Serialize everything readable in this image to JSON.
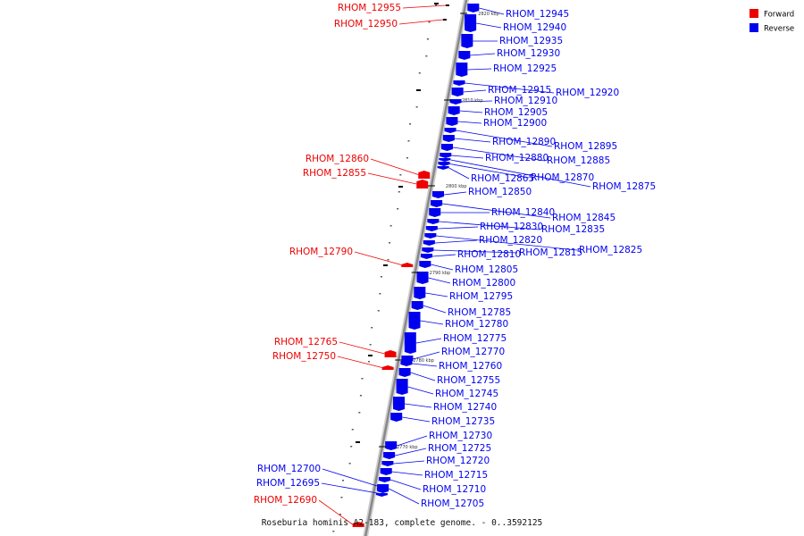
{
  "caption": "Roseburia hominis A2-183, complete genome. - 0..3592125",
  "legend": [
    {
      "label": "Forward",
      "color": "#ee0000"
    },
    {
      "label": "Reverse",
      "color": "#0000ee"
    }
  ],
  "colors": {
    "forward": "#ee0000",
    "reverse": "#0000ee",
    "backbone": "#888888"
  },
  "ticks": [
    "2820 kbp",
    "2810 kbp",
    "2800 kbp",
    "2790 kbp",
    "2780 kbp",
    "2770 kbp"
  ],
  "genes": [
    {
      "label": "RHOM_12955",
      "strand": "forward"
    },
    {
      "label": "RHOM_12950",
      "strand": "forward"
    },
    {
      "label": "RHOM_12945",
      "strand": "reverse"
    },
    {
      "label": "RHOM_12940",
      "strand": "reverse"
    },
    {
      "label": "RHOM_12935",
      "strand": "reverse"
    },
    {
      "label": "RHOM_12930",
      "strand": "reverse"
    },
    {
      "label": "RHOM_12925",
      "strand": "reverse"
    },
    {
      "label": "RHOM_12920",
      "strand": "reverse"
    },
    {
      "label": "RHOM_12915",
      "strand": "reverse"
    },
    {
      "label": "RHOM_12910",
      "strand": "reverse"
    },
    {
      "label": "RHOM_12905",
      "strand": "reverse"
    },
    {
      "label": "RHOM_12900",
      "strand": "reverse"
    },
    {
      "label": "RHOM_12895",
      "strand": "reverse"
    },
    {
      "label": "RHOM_12890",
      "strand": "reverse"
    },
    {
      "label": "RHOM_12885",
      "strand": "reverse"
    },
    {
      "label": "RHOM_12880",
      "strand": "reverse"
    },
    {
      "label": "RHOM_12875",
      "strand": "reverse"
    },
    {
      "label": "RHOM_12870",
      "strand": "reverse"
    },
    {
      "label": "RHOM_12865",
      "strand": "reverse"
    },
    {
      "label": "RHOM_12860",
      "strand": "forward"
    },
    {
      "label": "RHOM_12855",
      "strand": "forward"
    },
    {
      "label": "RHOM_12850",
      "strand": "reverse"
    },
    {
      "label": "RHOM_12845",
      "strand": "reverse"
    },
    {
      "label": "RHOM_12840",
      "strand": "reverse"
    },
    {
      "label": "RHOM_12835",
      "strand": "reverse"
    },
    {
      "label": "RHOM_12830",
      "strand": "reverse"
    },
    {
      "label": "RHOM_12825",
      "strand": "reverse"
    },
    {
      "label": "RHOM_12820",
      "strand": "reverse"
    },
    {
      "label": "RHOM_12815",
      "strand": "reverse"
    },
    {
      "label": "RHOM_12810",
      "strand": "reverse"
    },
    {
      "label": "RHOM_12805",
      "strand": "reverse"
    },
    {
      "label": "RHOM_12800",
      "strand": "reverse"
    },
    {
      "label": "RHOM_12795",
      "strand": "reverse"
    },
    {
      "label": "RHOM_12790",
      "strand": "forward"
    },
    {
      "label": "RHOM_12785",
      "strand": "reverse"
    },
    {
      "label": "RHOM_12780",
      "strand": "reverse"
    },
    {
      "label": "RHOM_12775",
      "strand": "reverse"
    },
    {
      "label": "RHOM_12770",
      "strand": "reverse"
    },
    {
      "label": "RHOM_12765",
      "strand": "forward"
    },
    {
      "label": "RHOM_12760",
      "strand": "reverse"
    },
    {
      "label": "RHOM_12755",
      "strand": "reverse"
    },
    {
      "label": "RHOM_12750",
      "strand": "forward"
    },
    {
      "label": "RHOM_12745",
      "strand": "reverse"
    },
    {
      "label": "RHOM_12740",
      "strand": "reverse"
    },
    {
      "label": "RHOM_12735",
      "strand": "reverse"
    },
    {
      "label": "RHOM_12730",
      "strand": "reverse"
    },
    {
      "label": "RHOM_12725",
      "strand": "reverse"
    },
    {
      "label": "RHOM_12720",
      "strand": "reverse"
    },
    {
      "label": "RHOM_12715",
      "strand": "reverse"
    },
    {
      "label": "RHOM_12710",
      "strand": "reverse"
    },
    {
      "label": "RHOM_12705",
      "strand": "reverse"
    },
    {
      "label": "RHOM_12700",
      "strand": "reverse"
    },
    {
      "label": "RHOM_12695",
      "strand": "reverse"
    },
    {
      "label": "RHOM_12690",
      "strand": "forward"
    }
  ]
}
